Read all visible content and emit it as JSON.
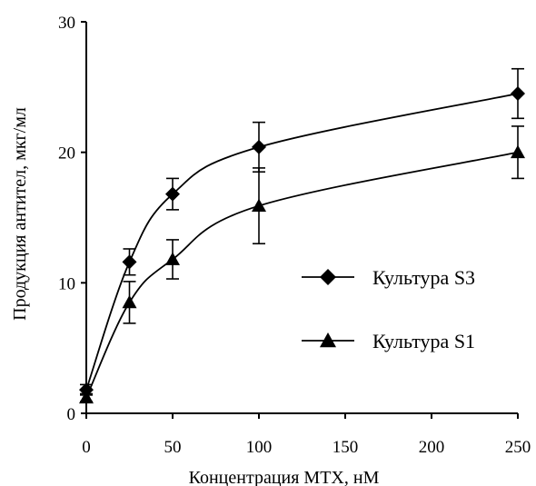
{
  "chart_data": {
    "type": "line",
    "title": "",
    "xlabel": "Концентрация МТХ, нМ",
    "ylabel": "Продукция антител, мкг/мл",
    "xlim": [
      0,
      250
    ],
    "ylim": [
      0,
      30
    ],
    "x_ticks": [
      "0",
      "50",
      "100",
      "150",
      "200",
      "250"
    ],
    "y_ticks": [
      "0",
      "10",
      "20",
      "30"
    ],
    "grid": false,
    "legend_position": "right",
    "series": [
      {
        "name": "Культура S3",
        "marker": "diamond",
        "color": "#000000",
        "x": [
          0,
          25,
          50,
          100,
          250
        ],
        "y": [
          1.8,
          11.6,
          16.8,
          20.4,
          24.5
        ],
        "err": [
          0.4,
          1.0,
          1.2,
          1.9,
          1.9
        ]
      },
      {
        "name": "Культура S1",
        "marker": "triangle",
        "color": "#000000",
        "x": [
          0,
          25,
          50,
          100,
          250
        ],
        "y": [
          1.2,
          8.5,
          11.8,
          15.9,
          20.0
        ],
        "err": [
          0.3,
          1.6,
          1.5,
          2.9,
          2.0
        ]
      }
    ]
  }
}
